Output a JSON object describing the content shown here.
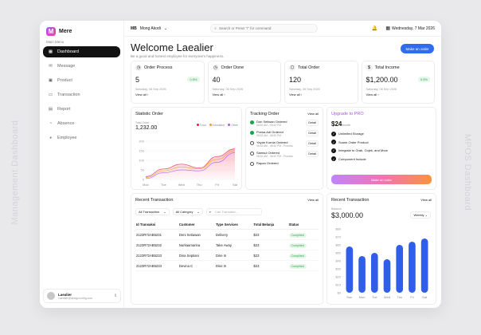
{
  "side_left_text": "Management Dashboard",
  "side_right_text": "MPOS Dashboard",
  "brand": {
    "logo_letter": "M",
    "name": "Mere"
  },
  "menu_label": "Main Menu",
  "menu": [
    {
      "label": "Dashboard",
      "icon": "grid-icon",
      "active": true
    },
    {
      "label": "Message",
      "icon": "chat-icon"
    },
    {
      "label": "Product",
      "icon": "box-icon"
    },
    {
      "label": "Transaction",
      "icon": "card-icon"
    },
    {
      "label": "Report",
      "icon": "doc-icon"
    },
    {
      "label": "Absence",
      "icon": "user-icon"
    },
    {
      "label": "Employee",
      "icon": "users-icon"
    }
  ],
  "user": {
    "name": "Laealier",
    "email": "Laealier@designconfig.com"
  },
  "topbar": {
    "badge": "MB",
    "workspace": "Mong Akodi",
    "search_placeholder": "Search or Press \"/\" for command",
    "date": "Wednesday, 7 Mar 2026"
  },
  "welcome": {
    "title": "Welcome Laealier",
    "subtitle": "Be a good and honest employee for everyone's happiness.",
    "button": "Make an order"
  },
  "stats": [
    {
      "label": "Order Process",
      "value": "5",
      "pct": "0.5%",
      "date": "Saturday, 06 Sep 2026",
      "link": "View all"
    },
    {
      "label": "Order Done",
      "value": "40",
      "pct": "",
      "date": "Saturday, 06 Sep 2026",
      "link": "View all"
    },
    {
      "label": "Total Order",
      "value": "120",
      "pct": "",
      "date": "Saturday, 06 Sep 2026",
      "link": "View all"
    },
    {
      "label": "Total Income",
      "value": "$1,200.00",
      "pct": "0.5%",
      "date": "Saturday, 06 Sep 2026",
      "link": "View all"
    }
  ],
  "statistic": {
    "title": "Statistic Order",
    "sub_label": "Total Order",
    "total": "1,232.00",
    "legend": [
      "Food",
      "Education",
      "Other"
    ]
  },
  "chart_data": [
    {
      "type": "area",
      "categories": [
        "Mon",
        "Tue",
        "Wed",
        "Thu",
        "Fri",
        "Sat"
      ],
      "ylim": [
        0,
        200
      ],
      "yticks": [
        "0",
        "50",
        "100",
        "150",
        "200"
      ],
      "series": [
        {
          "name": "Food",
          "values": [
            15,
            55,
            80,
            60,
            120,
            160
          ]
        },
        {
          "name": "Education",
          "values": [
            10,
            45,
            65,
            55,
            105,
            150
          ]
        },
        {
          "name": "Other",
          "values": [
            5,
            35,
            50,
            45,
            90,
            140
          ]
        }
      ],
      "colors": [
        "#e11d48",
        "#f59e0b",
        "#a855f7"
      ]
    },
    {
      "type": "bar",
      "title": "Recent Transaction",
      "categories": [
        "Sun",
        "Mon",
        "Tue",
        "Wed",
        "Thu",
        "Fri",
        "Sat"
      ],
      "values": [
        58,
        46,
        50,
        42,
        60,
        64,
        68
      ],
      "ylim": [
        0,
        80
      ],
      "yticks": [
        "$0",
        "$10",
        "$20",
        "$30",
        "$40",
        "$50",
        "$60",
        "$70",
        "$80"
      ],
      "color": "#2f5ee9"
    }
  ],
  "tracking": {
    "title": "Tracking Order",
    "view_all": "View all",
    "items": [
      {
        "title": "Dori Setiwan Ordered",
        "sub": "08:52 AM - 06:52 PM",
        "status": "done",
        "button": "Detail"
      },
      {
        "title": "Purwa Adi Ordered",
        "sub": "08:52 AM - 06:52 PM",
        "status": "done",
        "button": "Detail"
      },
      {
        "title": "Yayan Kurnia Ordered",
        "sub": "08:52 AM - 06:52 PM - Process",
        "status": "process",
        "button": "Detail"
      },
      {
        "title": "Samsul Ordered",
        "sub": "08:52 AM - 06:52 PM - Process",
        "status": "process",
        "button": "Detail"
      },
      {
        "title": "Rapan Ordered",
        "sub": "",
        "status": "process",
        "button": ""
      }
    ]
  },
  "upgrade": {
    "title": "Upgrade to PRO",
    "price": "$24",
    "period": "/month",
    "features": [
      "Unlimited Storage",
      "Scane Order Product",
      "Integrate to Grab, Gojek, and More",
      "Component Include"
    ],
    "button": "Make an order"
  },
  "recent": {
    "title": "Recent Transaction",
    "view_all": "View all",
    "filters": [
      "All Transaction",
      "All Category"
    ],
    "search_placeholder": "Cari Transaksi...",
    "columns": [
      "Id Transaksi",
      "Customer",
      "Type Services",
      "Total Belanja",
      "Status"
    ],
    "rows": [
      [
        "2123R72AB5231",
        "Deni Setiawan",
        "Delivery",
        "$23",
        "Complited"
      ],
      [
        "2123R72AB5232",
        "Nurkaamarina",
        "Take Away",
        "$23",
        "Complited"
      ],
      [
        "2123R72AB5233",
        "Dina Septiani",
        "Dine In",
        "$23",
        "Complited"
      ],
      [
        "2123R72AB5233",
        "Devina C",
        "Dine In",
        "$23",
        "Complited"
      ]
    ]
  },
  "recent2": {
    "title": "Recent Transaction",
    "view_all": "View all",
    "balance_label": "Balance",
    "amount": "$3,000.00",
    "period": "Weekly"
  }
}
